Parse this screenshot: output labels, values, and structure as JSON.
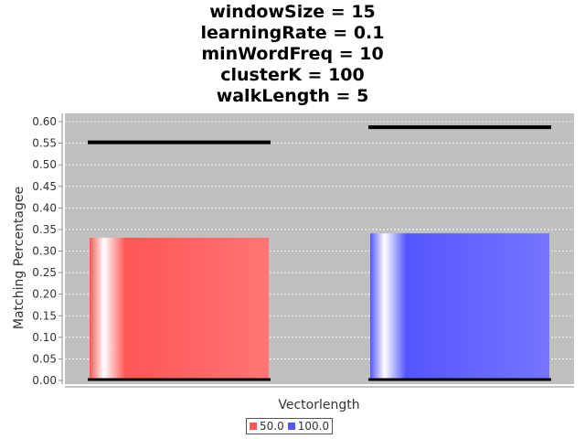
{
  "chart_data": {
    "type": "bar",
    "title_lines": [
      "windowSize = 15",
      "learningRate = 0.1",
      "minWordFreq = 10",
      "clusterK = 100",
      "walkLength = 5"
    ],
    "xlabel": "Vectorlength",
    "ylabel": "Matching Percentagee",
    "ylim": [
      0,
      0.62
    ],
    "yticks": [
      "0.00",
      "0.05",
      "0.10",
      "0.15",
      "0.20",
      "0.25",
      "0.30",
      "0.35",
      "0.40",
      "0.45",
      "0.50",
      "0.55",
      "0.60"
    ],
    "grid": true,
    "legend_position": "bottom-center",
    "series": [
      {
        "name": "50.0",
        "value": 0.331,
        "upper": 0.552,
        "lower": 0.0,
        "color": "#ff5555"
      },
      {
        "name": "100.0",
        "value": 0.341,
        "upper": 0.587,
        "lower": 0.0,
        "color": "#5555ff"
      }
    ],
    "plot_background": "#c0c0c0"
  }
}
